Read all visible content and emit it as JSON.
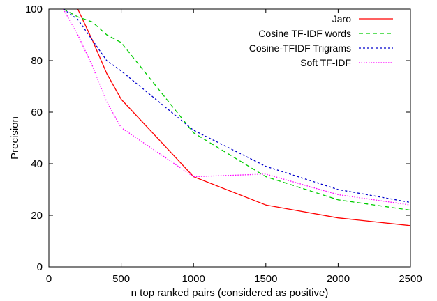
{
  "chart_data": {
    "type": "line",
    "title": "",
    "xlabel": "n top ranked pairs (considered as positive)",
    "ylabel": "Precision",
    "xlim": [
      0,
      2500
    ],
    "ylim": [
      0,
      100
    ],
    "x_ticks": [
      0,
      500,
      1000,
      1500,
      2000,
      2500
    ],
    "y_ticks": [
      0,
      20,
      40,
      60,
      80,
      100
    ],
    "grid": false,
    "legend_position": "top-right",
    "series": [
      {
        "name": "Jaro",
        "color": "#ff0000",
        "dash": "solid",
        "x": [
          150,
          200,
          300,
          400,
          500,
          1000,
          1500,
          2000,
          2500
        ],
        "y": [
          110,
          100,
          88,
          75,
          65,
          35,
          24,
          19,
          16
        ]
      },
      {
        "name": "Cosine TF-IDF words",
        "color": "#00cc00",
        "dash": "dashed",
        "x": [
          100,
          200,
          300,
          400,
          500,
          1000,
          1500,
          2000,
          2500
        ],
        "y": [
          100,
          97,
          95,
          90,
          87,
          52,
          35,
          26,
          22
        ]
      },
      {
        "name": "Cosine-TFIDF Trigrams",
        "color": "#0000cc",
        "dash": "dotted",
        "x": [
          100,
          200,
          300,
          400,
          500,
          1000,
          1500,
          2000,
          2500
        ],
        "y": [
          100,
          96,
          88,
          80,
          76,
          53,
          39,
          30,
          25
        ]
      },
      {
        "name": "Soft TF-IDF",
        "color": "#ff00ff",
        "dash": "dotted-fine",
        "x": [
          100,
          200,
          300,
          400,
          500,
          1000,
          1500,
          2000,
          2500
        ],
        "y": [
          100,
          90,
          78,
          64,
          54,
          35,
          36,
          28,
          24
        ]
      }
    ]
  }
}
